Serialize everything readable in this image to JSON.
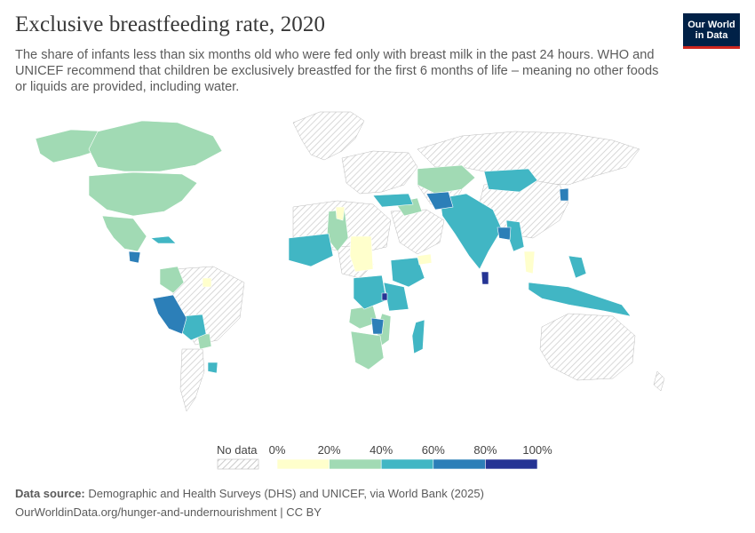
{
  "header": {
    "title": "Exclusive breastfeeding rate, 2020",
    "subtitle": "The share of infants less than six months old who were fed only with breast milk in the past 24 hours. WHO and UNICEF recommend that children be exclusively breastfed for the first 6 months of life – meaning no other foods or liquids are provided, including water."
  },
  "logo": {
    "line1": "Our World",
    "line2": "in Data",
    "bg_color": "#002147",
    "accent_color": "#ce261e"
  },
  "legend": {
    "no_data_label": "No data",
    "tick_labels": [
      "0%",
      "20%",
      "40%",
      "60%",
      "80%",
      "100%"
    ],
    "bins": [
      {
        "range": "0–20%",
        "color": "#ffffcc"
      },
      {
        "range": "20–40%",
        "color": "#a1dab4"
      },
      {
        "range": "40–60%",
        "color": "#41b6c4"
      },
      {
        "range": "60–80%",
        "color": "#2c7fb8"
      },
      {
        "range": "80–100%",
        "color": "#253494"
      }
    ],
    "no_data_pattern": "hatched-gray"
  },
  "footer": {
    "source_label": "Data source:",
    "source_text": " Demographic and Health Surveys (DHS) and UNICEF, via World Bank (2025)",
    "url_text": "OurWorldinData.org/hunger-and-undernourishment | CC BY"
  },
  "map": {
    "projection": "world",
    "regions_with_data": [
      {
        "region": "Canada",
        "bin": "20–40%"
      },
      {
        "region": "Alaska",
        "bin": "20–40%"
      },
      {
        "region": "United States",
        "bin": "20–40%"
      },
      {
        "region": "Mexico",
        "bin": "20–40%"
      },
      {
        "region": "Cuba",
        "bin": "40–60%"
      },
      {
        "region": "Guatemala",
        "bin": "60–80%"
      },
      {
        "region": "Colombia",
        "bin": "20–40%"
      },
      {
        "region": "Peru",
        "bin": "60–80%"
      },
      {
        "region": "Bolivia",
        "bin": "40–60%"
      },
      {
        "region": "Paraguay",
        "bin": "20–40%"
      },
      {
        "region": "Uruguay",
        "bin": "40–60%"
      },
      {
        "region": "West Africa (Mali, Niger region)",
        "bin": "40–60%"
      },
      {
        "region": "Sahel (Chad)",
        "bin": "20–40%"
      },
      {
        "region": "Sudan",
        "bin": "0–20%"
      },
      {
        "region": "Ethiopia",
        "bin": "40–60%"
      },
      {
        "region": "DR Congo",
        "bin": "40–60%"
      },
      {
        "region": "Tanzania",
        "bin": "40–60%"
      },
      {
        "region": "Zambia",
        "bin": "20–40%"
      },
      {
        "region": "Malawi",
        "bin": "60–80%"
      },
      {
        "region": "Rwanda",
        "bin": "80–100%"
      },
      {
        "region": "Mozambique",
        "bin": "20–40%"
      },
      {
        "region": "Southern Africa",
        "bin": "20–40%"
      },
      {
        "region": "Madagascar",
        "bin": "40–60%"
      },
      {
        "region": "Kazakhstan",
        "bin": "20–40%"
      },
      {
        "region": "Mongolia",
        "bin": "40–60%"
      },
      {
        "region": "Afghanistan",
        "bin": "60–80%"
      },
      {
        "region": "Pakistan",
        "bin": "40–60%"
      },
      {
        "region": "India",
        "bin": "40–60%"
      },
      {
        "region": "Bangladesh",
        "bin": "60–80%"
      },
      {
        "region": "Sri Lanka",
        "bin": "80–100%"
      },
      {
        "region": "Myanmar",
        "bin": "40–60%"
      },
      {
        "region": "Thailand",
        "bin": "0–20%"
      },
      {
        "region": "North Korea",
        "bin": "60–80%"
      },
      {
        "region": "Indonesia",
        "bin": "40–60%"
      },
      {
        "region": "Philippines",
        "bin": "40–60%"
      },
      {
        "region": "Papua New Guinea",
        "bin": "40–60%"
      },
      {
        "region": "Turkey",
        "bin": "40–60%"
      },
      {
        "region": "Yemen",
        "bin": "0–20%"
      }
    ]
  }
}
